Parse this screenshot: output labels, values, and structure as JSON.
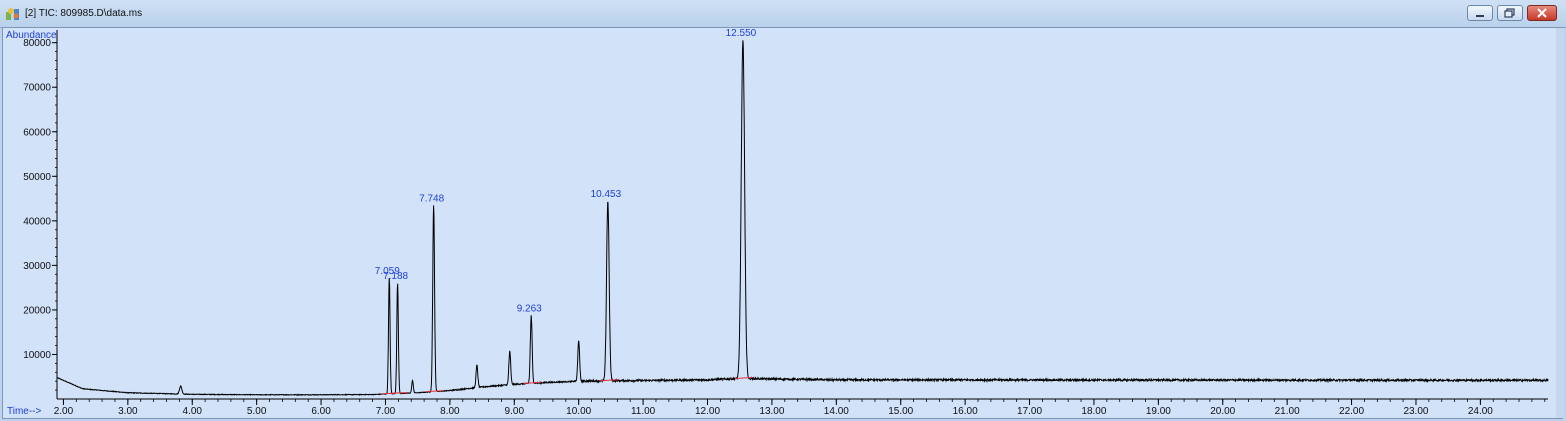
{
  "window": {
    "title": "[2] TIC: 809985.D\\data.ms",
    "icons": {
      "app": "chromatogram-app-icon",
      "minimize": "minimize-icon",
      "maximize": "maximize-icon",
      "close": "close-icon"
    }
  },
  "chart_data": {
    "type": "line",
    "title": "",
    "ylabel": "Abundance",
    "xlabel": "Time-->",
    "xlim": [
      1.9,
      25.05
    ],
    "ylim": [
      0,
      81500
    ],
    "x_ticks": [
      "2.00",
      "3.00",
      "4.00",
      "5.00",
      "6.00",
      "7.00",
      "8.00",
      "9.00",
      "10.00",
      "11.00",
      "12.00",
      "13.00",
      "14.00",
      "15.00",
      "16.00",
      "17.00",
      "18.00",
      "19.00",
      "20.00",
      "21.00",
      "22.00",
      "23.00",
      "24.00"
    ],
    "y_ticks": [
      "10000",
      "20000",
      "30000",
      "40000",
      "50000",
      "60000",
      "70000",
      "80000"
    ],
    "grid": false,
    "line_color": "#000000",
    "label_color": "#1f3fd6",
    "baseline": [
      {
        "x": 1.9,
        "y": 4800
      },
      {
        "x": 2.3,
        "y": 2300
      },
      {
        "x": 3.0,
        "y": 1400
      },
      {
        "x": 4.0,
        "y": 1050
      },
      {
        "x": 5.0,
        "y": 950
      },
      {
        "x": 6.0,
        "y": 950
      },
      {
        "x": 6.8,
        "y": 1000
      },
      {
        "x": 7.5,
        "y": 1400
      },
      {
        "x": 8.0,
        "y": 1900
      },
      {
        "x": 8.5,
        "y": 2700
      },
      {
        "x": 9.0,
        "y": 3300
      },
      {
        "x": 9.5,
        "y": 3700
      },
      {
        "x": 10.0,
        "y": 4000
      },
      {
        "x": 10.5,
        "y": 4100
      },
      {
        "x": 11.0,
        "y": 4150
      },
      {
        "x": 12.0,
        "y": 4300
      },
      {
        "x": 12.5,
        "y": 4600
      },
      {
        "x": 13.0,
        "y": 4500
      },
      {
        "x": 14.0,
        "y": 4300
      },
      {
        "x": 25.05,
        "y": 4200
      }
    ],
    "peaks": [
      {
        "rt": 3.82,
        "height": 1800,
        "width": 0.018
      },
      {
        "rt": 7.059,
        "height": 26000,
        "width": 0.012,
        "label": "7.059"
      },
      {
        "rt": 7.188,
        "height": 24800,
        "width": 0.012,
        "label": "7.188"
      },
      {
        "rt": 7.42,
        "height": 2800,
        "width": 0.012
      },
      {
        "rt": 7.748,
        "height": 41800,
        "width": 0.014,
        "label": "7.748"
      },
      {
        "rt": 8.42,
        "height": 5000,
        "width": 0.014
      },
      {
        "rt": 8.93,
        "height": 7500,
        "width": 0.014
      },
      {
        "rt": 9.263,
        "height": 15200,
        "width": 0.014,
        "label": "9.263"
      },
      {
        "rt": 10.0,
        "height": 9200,
        "width": 0.014
      },
      {
        "rt": 10.453,
        "height": 40400,
        "width": 0.02,
        "label": "10.453"
      },
      {
        "rt": 12.55,
        "height": 76000,
        "width": 0.026,
        "label": "12.550"
      }
    ]
  }
}
